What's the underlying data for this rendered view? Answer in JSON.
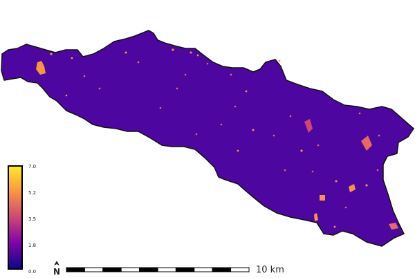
{
  "map": {
    "colors": {
      "catchment_fill": "#4d07a0",
      "catchment_outline": "#111111",
      "patch_orange": "#f89540",
      "patch_pink": "#e56b5d",
      "patch_magenta": "#cc4778",
      "background": "#ffffff"
    },
    "colormap": "plasma"
  },
  "legend": {
    "ticks": [
      "7.0",
      "5.2",
      "3.5",
      "1.8",
      "0.0"
    ],
    "colors": [
      "#fde725",
      "#f89540",
      "#cc4778",
      "#7e03a8",
      "#0d0887"
    ]
  },
  "north_arrow": {
    "icon": "north-arrow-icon",
    "letter": "N"
  },
  "scale_bar": {
    "label": "10 km",
    "segments": 10
  }
}
